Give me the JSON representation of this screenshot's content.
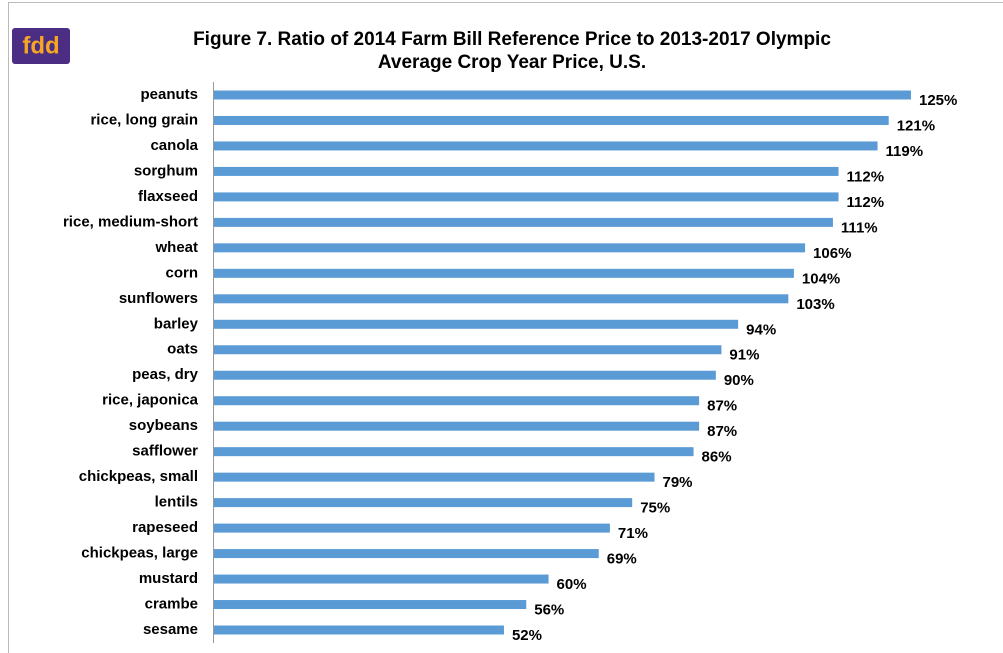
{
  "logo": "fdd",
  "chart_data": {
    "type": "bar",
    "orientation": "horizontal",
    "title": [
      "Figure 7.  Ratio of 2014 Farm Bill Reference Price to 2013-2017 Olympic",
      "Average Crop Year Price, U.S."
    ],
    "categories": [
      "peanuts",
      "rice, long grain",
      "canola",
      "sorghum",
      "flaxseed",
      "rice, medium-short",
      "wheat",
      "corn",
      "sunflowers",
      "barley",
      "oats",
      "peas, dry",
      "rice, japonica",
      "soybeans",
      "safflower",
      "chickpeas, small",
      "lentils",
      "rapeseed",
      "chickpeas, large",
      "mustard",
      "crambe",
      "sesame"
    ],
    "values": [
      125,
      121,
      119,
      112,
      112,
      111,
      106,
      104,
      103,
      94,
      91,
      90,
      87,
      87,
      86,
      79,
      75,
      71,
      69,
      60,
      56,
      52
    ],
    "value_labels": [
      "125%",
      "121%",
      "119%",
      "112%",
      "112%",
      "111%",
      "106%",
      "104%",
      "103%",
      "94%",
      "91%",
      "90%",
      "87%",
      "87%",
      "86%",
      "79%",
      "75%",
      "71%",
      "69%",
      "60%",
      "56%",
      "52%"
    ],
    "color": "#5b9bd5"
  }
}
